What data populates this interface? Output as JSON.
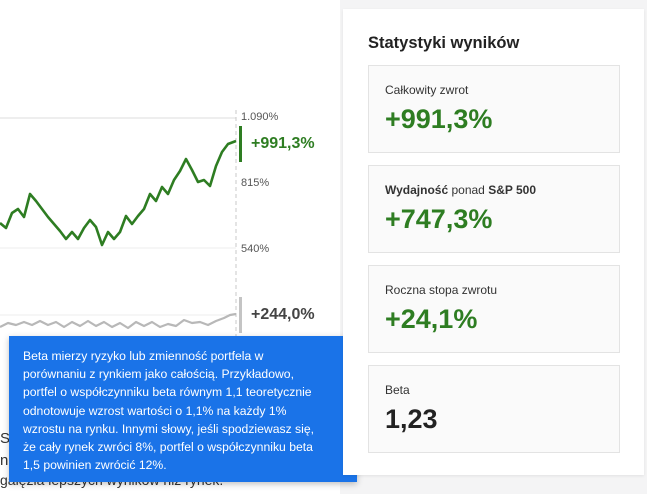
{
  "chart": {
    "y_labels": [
      "1.090%",
      "815%",
      "540%"
    ],
    "portfolio_value": "+991,3%",
    "benchmark_value": "+244,0%",
    "portfolio_color": "#2e7d22",
    "benchmark_color": "#9e9e9e"
  },
  "background_text": {
    "line1": "S",
    "line2": "n",
    "line3": "gałęzia lepszych wyników niż rynek."
  },
  "tooltip": {
    "text_lines": [
      "Beta mierzy ryzyko lub zmienność portfela w",
      "porównaniu z rynkiem jako całością. Przykładowo,",
      "portfel o współczynniku beta równym 1,1 teoretycznie",
      "odnotowuje wzrost wartości o 1,1% na każdy 1%",
      "wzrostu na rynku. Innymi słowy, jeśli spodziewasz się,",
      "że cały rynek zwróci 8%, portfel o współczynniku beta",
      "1,5 powinien zwrócić 12%."
    ]
  },
  "stats": {
    "title": "Statystyki wyników",
    "cards": [
      {
        "label": "Całkowity zwrot",
        "value": "+991,3%"
      },
      {
        "label_bold1": "Wydajność",
        "label_mid": " ponad ",
        "label_bold2": "S&P 500",
        "value": "+747,3%"
      },
      {
        "label": "Roczna stopa zwrotu",
        "value": "+24,1%"
      },
      {
        "label": "Beta",
        "value": "1,23"
      }
    ]
  }
}
